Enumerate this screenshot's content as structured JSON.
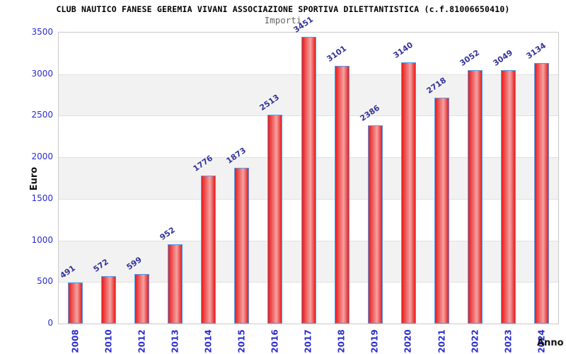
{
  "chart_data": {
    "type": "bar",
    "title": "CLUB NAUTICO FANESE GEREMIA VIVANI ASSOCIAZIONE SPORTIVA DILETTANTISTICA (c.f.81006650410)",
    "subtitle": "Importi",
    "ylabel": "Euro",
    "xlabel": "Anno",
    "categories": [
      "2008",
      "2010",
      "2012",
      "2013",
      "2014",
      "2015",
      "2016",
      "2017",
      "2018",
      "2019",
      "2020",
      "2021",
      "2022",
      "2023",
      "2024"
    ],
    "values": [
      491,
      572,
      599,
      952,
      1776,
      1873,
      2513,
      3451,
      3101,
      2386,
      3140,
      2718,
      3052,
      3049,
      3134
    ],
    "ylim": [
      0,
      3500
    ],
    "yticks": [
      0,
      500,
      1000,
      1500,
      2000,
      2500,
      3000,
      3500
    ],
    "legend_position": "none",
    "grid": "horizontal-bands-alternating",
    "colors": {
      "bar_edge": "#e81c1c",
      "bar_center": "#f4a2a2",
      "bar_border": "#4e9ff0",
      "axis_tick_text": "#2b2bd0",
      "value_label_text": "#333399",
      "band_gray": "#f2f2f2",
      "gridline": "#e0e0e0",
      "plot_border": "#c9c9c9",
      "title_text": "#000000",
      "subtitle_text": "#666666"
    }
  }
}
